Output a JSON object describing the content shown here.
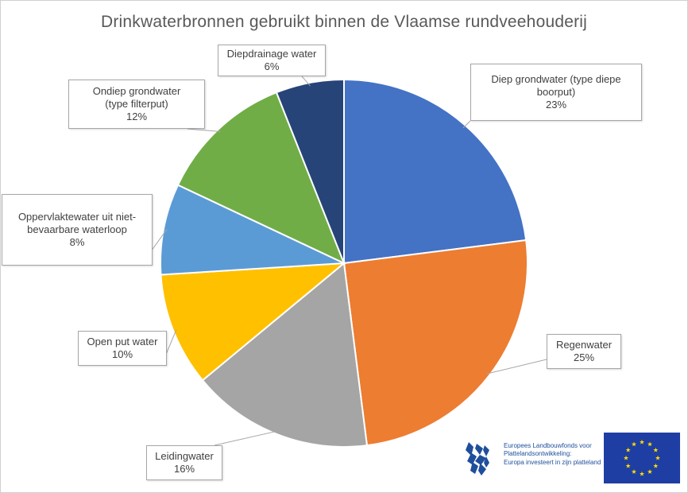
{
  "chart_data": {
    "type": "pie",
    "title": "Drinkwaterbronnen gebruikt binnen de Vlaamse rundveehouderij",
    "slices": [
      {
        "label": "Diep grondwater (type diepe boorput)",
        "value": 23,
        "value_label": "23%",
        "color": "#4472c4"
      },
      {
        "label": "Regenwater",
        "value": 25,
        "value_label": "25%",
        "color": "#ed7d31"
      },
      {
        "label": "Leidingwater",
        "value": 16,
        "value_label": "16%",
        "color": "#a5a5a5"
      },
      {
        "label": "Open put water",
        "value": 10,
        "value_label": "10%",
        "color": "#ffc000"
      },
      {
        "label": "Oppervlaktewater uit niet-bevaarbare waterloop",
        "value": 8,
        "value_label": "8%",
        "color": "#5b9bd5"
      },
      {
        "label": "Ondiep grondwater (type filterput)",
        "value": 12,
        "value_label": "12%",
        "color": "#70ad47"
      },
      {
        "label": "Diepdrainage water",
        "value": 6,
        "value_label": "6%",
        "color": "#264478"
      }
    ],
    "legend": "none"
  },
  "logos": {
    "fund_line1": "Europees Landbouwfonds voor Plattelandsontwikkeling:",
    "fund_line2": "Europa investeert in zijn platteland",
    "lion_icon": "flemish-lion-icon",
    "flag_icon": "eu-flag-icon"
  }
}
